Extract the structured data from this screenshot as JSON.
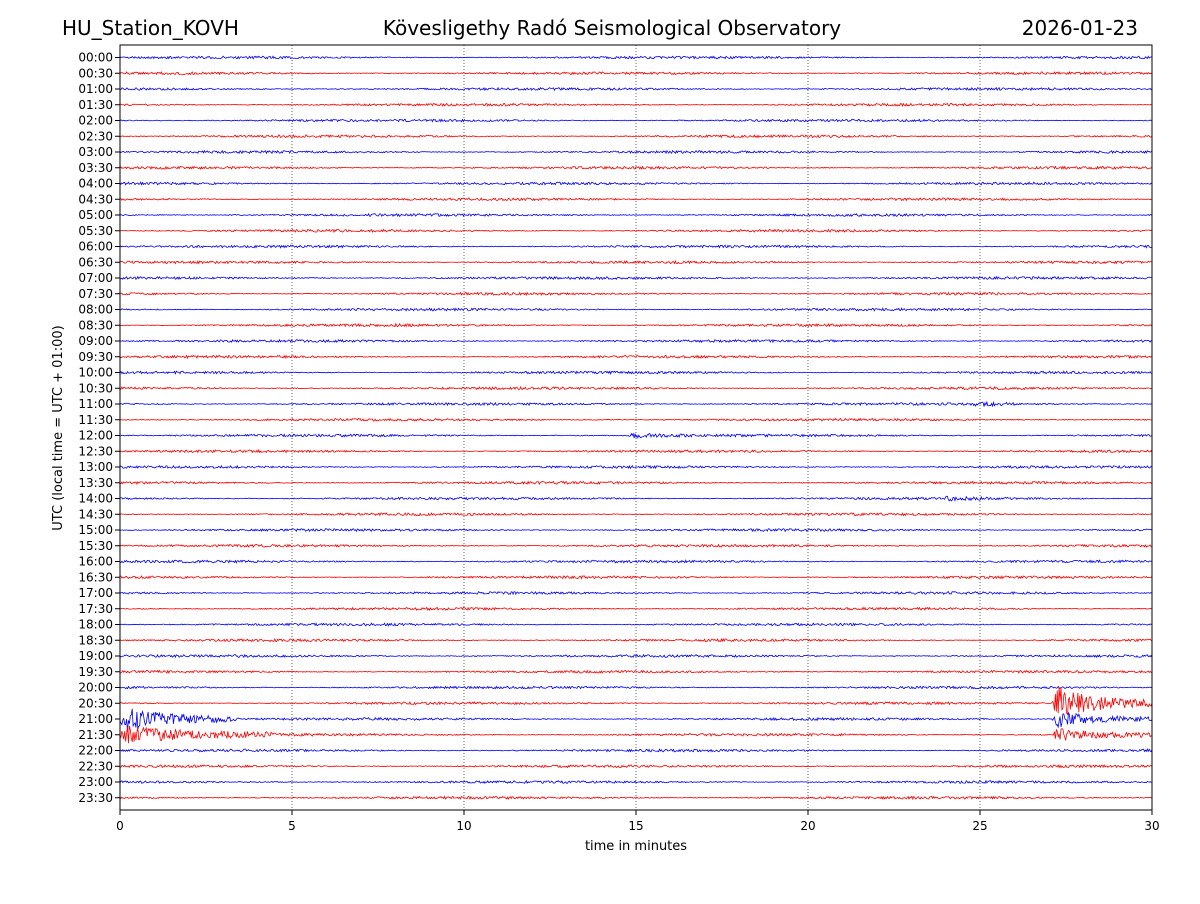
{
  "header": {
    "station": "HU_Station_KOVH",
    "observatory": "Kövesligethy Radó Seismological Observatory",
    "date": "2026-01-23"
  },
  "chart_data": {
    "type": "line",
    "title": "Kövesligethy Radó Seismological Observatory",
    "xlabel": "time in minutes",
    "ylabel": "UTC (local time = UTC + 01:00)",
    "xlim": [
      0,
      30
    ],
    "x_ticks": [
      0,
      5,
      10,
      15,
      20,
      25,
      30
    ],
    "grid": "vertical dotted at x ticks",
    "colors": {
      "even_traces": "#0000ff",
      "odd_traces": "#ff0000",
      "grid": "#000000"
    },
    "rows": [
      "00:00",
      "00:30",
      "01:00",
      "01:30",
      "02:00",
      "02:30",
      "03:00",
      "03:30",
      "04:00",
      "04:30",
      "05:00",
      "05:30",
      "06:00",
      "06:30",
      "07:00",
      "07:30",
      "08:00",
      "08:30",
      "09:00",
      "09:30",
      "10:00",
      "10:30",
      "11:00",
      "11:30",
      "12:00",
      "12:30",
      "13:00",
      "13:30",
      "14:00",
      "14:30",
      "15:00",
      "15:30",
      "16:00",
      "16:30",
      "17:00",
      "17:30",
      "18:00",
      "18:30",
      "19:00",
      "19:30",
      "20:00",
      "20:30",
      "21:00",
      "21:30",
      "22:00",
      "22:30",
      "23:00",
      "23:30"
    ],
    "noise_level": 0.12,
    "events": [
      {
        "row": "08:30",
        "start_min": 7.9,
        "duration_min": 0.3,
        "amplitude": 0.5
      },
      {
        "row": "11:00",
        "start_min": 24.8,
        "duration_min": 1.2,
        "amplitude": 0.35
      },
      {
        "row": "12:00",
        "start_min": 14.8,
        "duration_min": 2.0,
        "amplitude": 0.3
      },
      {
        "row": "14:00",
        "start_min": 24.0,
        "duration_min": 1.3,
        "amplitude": 0.3
      },
      {
        "row": "20:30",
        "start_min": 27.1,
        "duration_min": 2.9,
        "amplitude": 2.5
      },
      {
        "row": "21:00",
        "start_min": 0.0,
        "duration_min": 3.5,
        "amplitude": 1.8
      },
      {
        "row": "21:00",
        "start_min": 27.1,
        "duration_min": 2.9,
        "amplitude": 1.2
      },
      {
        "row": "21:30",
        "start_min": 0.0,
        "duration_min": 4.5,
        "amplitude": 1.3
      },
      {
        "row": "21:30",
        "start_min": 27.1,
        "duration_min": 2.9,
        "amplitude": 0.9
      }
    ]
  }
}
